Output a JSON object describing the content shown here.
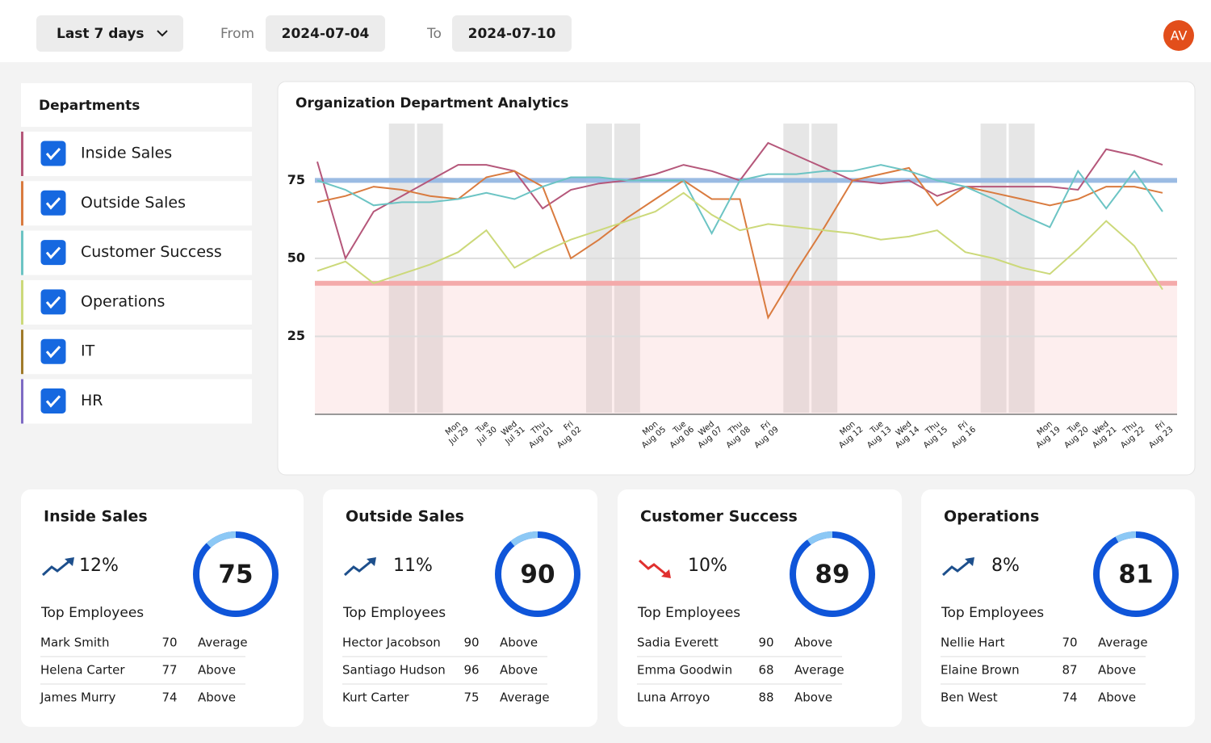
{
  "header": {
    "range": "Last 7 days",
    "from_label": "From",
    "from": "2024-07-04",
    "to_label": "To",
    "to": "2024-07-10",
    "avatar": "AV"
  },
  "sidebar": {
    "title": "Departments",
    "departments": [
      {
        "label": "Inside Sales",
        "color": "#b5577a",
        "checked": true
      },
      {
        "label": "Outside Sales",
        "color": "#d97b3f",
        "checked": true
      },
      {
        "label": "Customer Success",
        "color": "#6cc4c4",
        "checked": true
      },
      {
        "label": "Operations",
        "color": "#ccd97a",
        "checked": true
      },
      {
        "label": "IT",
        "color": "#a07a2a",
        "checked": true
      },
      {
        "label": "HR",
        "color": "#7e6bc4",
        "checked": true
      }
    ]
  },
  "chart_data": {
    "type": "line",
    "title": "Organization Department Analytics",
    "categories": [
      null,
      null,
      null,
      null,
      null,
      "Mon Jul 29",
      "Tue Jul 30",
      "Wed Jul 31",
      "Thu Aug 01",
      "Fri Aug 02",
      null,
      null,
      "Mon Aug 05",
      "Tue Aug 06",
      "Wed Aug 07",
      "Thu Aug 08",
      "Fri Aug 09",
      null,
      null,
      "Mon Aug 12",
      "Tue Aug 13",
      "Wed Aug 14",
      "Thu Aug 15",
      "Fri Aug 16",
      null,
      null,
      "Mon Aug 19",
      "Tue Aug 20",
      "Wed Aug 21",
      "Thu Aug 22",
      "Fri Aug 23"
    ],
    "series": [
      {
        "color": "#b5577a",
        "values": [
          81,
          50,
          65,
          70,
          75,
          80,
          80,
          78,
          66,
          72,
          74,
          75,
          77,
          80,
          78,
          75,
          87,
          83,
          79,
          75,
          74,
          75,
          70,
          73,
          73,
          73,
          73,
          72,
          85,
          83,
          80
        ]
      },
      {
        "color": "#d97b3f",
        "values": [
          68,
          70,
          73,
          72,
          70,
          69,
          76,
          78,
          73,
          50,
          56,
          63,
          69,
          75,
          69,
          69,
          31,
          46,
          60,
          75,
          77,
          79,
          67,
          73,
          71,
          69,
          67,
          69,
          73,
          73,
          71
        ]
      },
      {
        "color": "#6cc4c4",
        "values": [
          75,
          72,
          67,
          68,
          68,
          69,
          71,
          69,
          73,
          76,
          76,
          75,
          75,
          75,
          58,
          75,
          77,
          77,
          78,
          78,
          80,
          78,
          75,
          73,
          69,
          64,
          60,
          78,
          66,
          78,
          65
        ]
      },
      {
        "color": "#ccd97a",
        "values": [
          46,
          49,
          42,
          45,
          48,
          52,
          59,
          47,
          52,
          56,
          59,
          62,
          65,
          71,
          64,
          59,
          61,
          60,
          59,
          58,
          56,
          57,
          59,
          52,
          50,
          47,
          45,
          53,
          62,
          54,
          40
        ]
      }
    ],
    "thresholds": [
      {
        "value": 75,
        "color": "#9bbbe3"
      },
      {
        "value": 42,
        "color": "#f4aaaa"
      }
    ],
    "ylim": [
      0,
      94
    ],
    "yticks": [
      25,
      50,
      75
    ],
    "grid": true
  },
  "cards": [
    {
      "title": "Inside Sales",
      "trend": {
        "value": 12,
        "label": "12%"
      },
      "direction": "up",
      "score": "75",
      "subtitle": "Top Employees",
      "employees": [
        {
          "name": "Mark Smith",
          "score": "70",
          "rating": "Average"
        },
        {
          "name": "Helena Carter",
          "score": "77",
          "rating": "Above"
        },
        {
          "name": "James Murry",
          "score": "74",
          "rating": "Above"
        }
      ]
    },
    {
      "title": "Outside Sales",
      "trend": {
        "value": 11,
        "label": "11%"
      },
      "direction": "up",
      "score": "90",
      "subtitle": "Top Employees",
      "employees": [
        {
          "name": "Hector Jacobson",
          "score": "90",
          "rating": "Above"
        },
        {
          "name": "Santiago Hudson",
          "score": "96",
          "rating": "Above"
        },
        {
          "name": "Kurt Carter",
          "score": "75",
          "rating": "Average"
        }
      ]
    },
    {
      "title": "Customer Success",
      "trend": {
        "value": 10,
        "label": "10%"
      },
      "direction": "down",
      "score": "89",
      "subtitle": "Top Employees",
      "employees": [
        {
          "name": "Sadia Everett",
          "score": "90",
          "rating": "Above"
        },
        {
          "name": "Emma Goodwin",
          "score": "68",
          "rating": "Average"
        },
        {
          "name": "Luna Arroyo",
          "score": "88",
          "rating": "Above"
        }
      ]
    },
    {
      "title": "Operations",
      "trend": {
        "value": 8,
        "label": "8%"
      },
      "direction": "up",
      "score": "81",
      "subtitle": "Top Employees",
      "employees": [
        {
          "name": "Nellie Hart",
          "score": "70",
          "rating": "Average"
        },
        {
          "name": "Elaine Brown",
          "score": "87",
          "rating": "Above"
        },
        {
          "name": "Ben West",
          "score": "74",
          "rating": "Above"
        }
      ]
    }
  ]
}
